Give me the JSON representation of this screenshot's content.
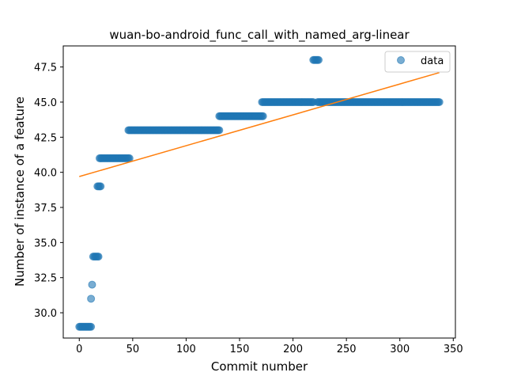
{
  "chart_data": {
    "type": "scatter",
    "title": "wuan-bo-android_func_call_with_named_arg-linear",
    "xlabel": "Commit number",
    "ylabel": "Number of instance of a feature",
    "xlim": [
      -15,
      352
    ],
    "ylim": [
      28.2,
      49.0
    ],
    "x_ticks": [
      0,
      50,
      100,
      150,
      200,
      250,
      300,
      350
    ],
    "y_ticks": [
      30.0,
      32.5,
      35.0,
      37.5,
      40.0,
      42.5,
      45.0,
      47.5
    ],
    "x_tick_labels": [
      "0",
      "50",
      "100",
      "150",
      "200",
      "250",
      "300",
      "350"
    ],
    "y_tick_labels": [
      "30.0",
      "32.5",
      "35.0",
      "37.5",
      "40.0",
      "42.5",
      "45.0",
      "47.5"
    ],
    "grid": false,
    "legend_position": "upper-right",
    "series": [
      {
        "name": "data",
        "kind": "scatter",
        "color": "#1f77b4",
        "segments": [
          {
            "x_start": 0,
            "x_end": 11,
            "y": 29
          },
          {
            "x_start": 11,
            "x_end": 11,
            "y": 31
          },
          {
            "x_start": 12,
            "x_end": 12,
            "y": 32
          },
          {
            "x_start": 13,
            "x_end": 18,
            "y": 34
          },
          {
            "x_start": 17,
            "x_end": 20,
            "y": 39
          },
          {
            "x_start": 19,
            "x_end": 47,
            "y": 41
          },
          {
            "x_start": 46,
            "x_end": 131,
            "y": 43
          },
          {
            "x_start": 131,
            "x_end": 172,
            "y": 44
          },
          {
            "x_start": 171,
            "x_end": 219,
            "y": 45
          },
          {
            "x_start": 219,
            "x_end": 224,
            "y": 48
          },
          {
            "x_start": 223,
            "x_end": 337,
            "y": 45
          }
        ]
      },
      {
        "name": "",
        "kind": "line",
        "color": "#ff7f0e",
        "x": [
          0,
          337
        ],
        "y": [
          39.7,
          47.1
        ]
      }
    ]
  }
}
